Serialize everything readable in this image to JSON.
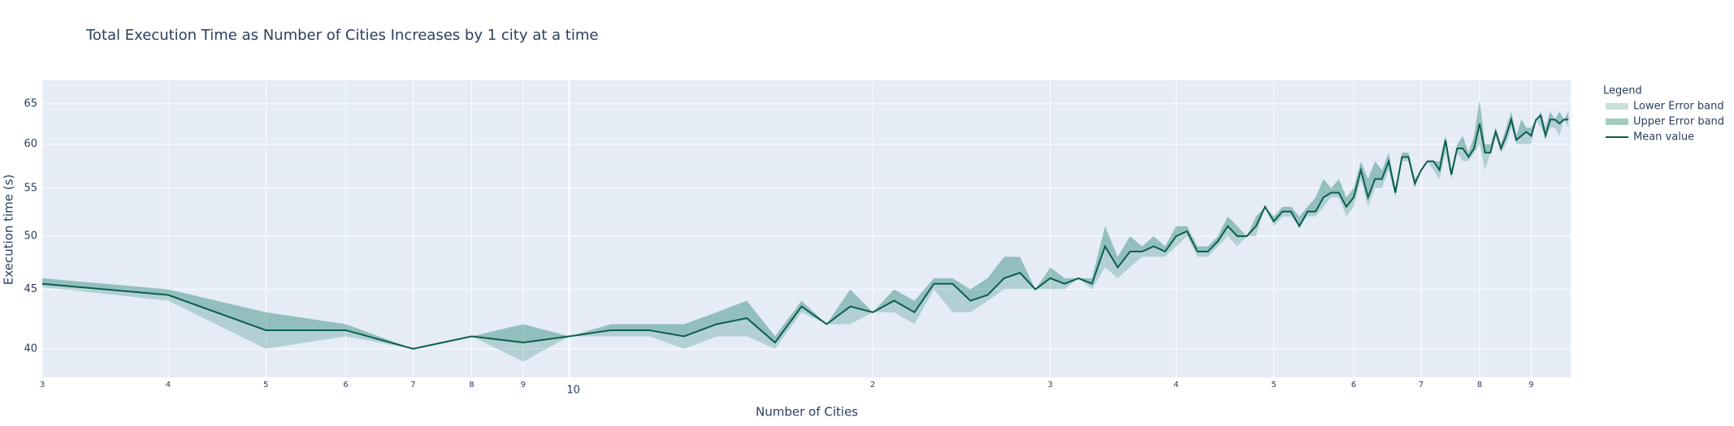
{
  "chart_data": {
    "type": "line",
    "title": "Total Execution Time as Number of Cities Increases by 1 city at a time",
    "x_label": "Number of Cities",
    "y_label": "Execution time (s)",
    "legend_title": "Legend",
    "log_x": true,
    "log_y": true,
    "grid": true,
    "legend": "right",
    "x": [
      3,
      4,
      5,
      6,
      7,
      8,
      9,
      10,
      11,
      12,
      13,
      14,
      15,
      16,
      17,
      18,
      19,
      20,
      21,
      22,
      23,
      24,
      25,
      26,
      27,
      28,
      29,
      30,
      31,
      32,
      33,
      34,
      35,
      36,
      37,
      38,
      39,
      40,
      41,
      42,
      43,
      44,
      45,
      46,
      47,
      48,
      49,
      50,
      51,
      52,
      53,
      54,
      55,
      56,
      57,
      58,
      59,
      60,
      61,
      62,
      63,
      64,
      65,
      66,
      67,
      68,
      69,
      70,
      71,
      72,
      73,
      74,
      75,
      76,
      77,
      78,
      79,
      80,
      81,
      82,
      83,
      84,
      85,
      86,
      87,
      88,
      89,
      90,
      91,
      92,
      93,
      94,
      95,
      96,
      97,
      98
    ],
    "series": [
      {
        "name": "Lower Error band",
        "color": "rgba(0,110,90,0.22)",
        "values": [
          45.2,
          44,
          40,
          41,
          40,
          41,
          39,
          41,
          41,
          41,
          40,
          41,
          41,
          40,
          43,
          42,
          42,
          43,
          43,
          42,
          45,
          43,
          43,
          44,
          45,
          45,
          45,
          45,
          45,
          46,
          45,
          47,
          46,
          47,
          48,
          48,
          48,
          49,
          50,
          48,
          48,
          49,
          50,
          49,
          50,
          50,
          53,
          51,
          52,
          52,
          51,
          52,
          52,
          53,
          54,
          54,
          52,
          53,
          56,
          53,
          55,
          55,
          57,
          54,
          58,
          58,
          55,
          57,
          58,
          57,
          56,
          59,
          56,
          59,
          58,
          58,
          59,
          60,
          57,
          59,
          61,
          59,
          60,
          62,
          60,
          60,
          60,
          60,
          63,
          62,
          61,
          62,
          62,
          61,
          63,
          62
        ]
      },
      {
        "name": "Upper Error band",
        "color": "rgba(0,110,90,0.36)",
        "values": [
          46,
          45,
          43,
          42,
          40,
          41,
          42,
          41,
          42,
          42,
          42,
          43,
          44,
          41,
          44,
          42,
          45,
          43,
          45,
          44,
          46,
          46,
          45,
          46,
          48,
          48,
          45,
          47,
          46,
          46,
          46,
          51,
          48,
          50,
          49,
          50,
          49,
          51,
          51,
          49,
          49,
          50,
          52,
          51,
          50,
          52,
          53,
          52,
          53,
          53,
          52,
          53,
          54,
          56,
          55,
          56,
          54,
          55,
          58,
          56,
          58,
          57,
          59,
          55,
          59,
          59,
          56,
          57,
          58,
          58,
          58,
          61,
          57,
          60,
          61,
          59,
          61,
          65.5,
          60,
          60,
          62,
          60,
          62,
          64,
          61,
          63,
          62,
          62,
          63,
          64,
          62,
          64,
          63,
          64,
          63,
          64
        ]
      },
      {
        "name": "Mean value",
        "color": "#0b5e4c",
        "values": [
          45.5,
          44.5,
          41.5,
          41.5,
          40,
          41,
          40.5,
          41,
          41.5,
          41.5,
          41,
          42,
          42.5,
          40.5,
          43.5,
          42,
          43.5,
          43,
          44,
          43,
          45.5,
          45.5,
          44,
          44.5,
          46,
          46.5,
          45,
          46,
          45.5,
          46,
          45.5,
          49,
          47,
          48.5,
          48.5,
          49,
          48.5,
          50,
          50.5,
          48.5,
          48.5,
          49.5,
          51,
          50,
          50,
          51,
          53,
          51.5,
          52.5,
          52.5,
          51,
          52.5,
          52.5,
          54,
          54.5,
          54.5,
          53,
          54,
          57,
          54,
          56,
          56,
          58,
          54.5,
          58.5,
          58.5,
          55.5,
          57,
          58,
          58,
          57,
          60.5,
          56.5,
          59.5,
          59.5,
          58.5,
          59.5,
          62.5,
          59,
          59,
          61.5,
          59.5,
          61,
          63,
          60.5,
          61,
          61.5,
          61,
          63,
          63.5,
          61,
          63,
          63,
          62.5,
          63,
          63
        ]
      }
    ],
    "xlim": [
      3,
      98.5
    ],
    "ylim": [
      37.8,
      68.1
    ],
    "xticks": [
      3,
      4,
      5,
      6,
      7,
      8,
      9,
      10,
      {
        "value": 20,
        "label": "2"
      },
      {
        "value": 30,
        "label": "3"
      },
      {
        "value": 40,
        "label": "4"
      },
      {
        "value": 50,
        "label": "5"
      },
      {
        "value": 60,
        "label": "6"
      },
      {
        "value": 70,
        "label": "7"
      },
      {
        "value": 80,
        "label": "8"
      },
      {
        "value": 90,
        "label": "9"
      }
    ],
    "yticks": [
      40,
      45,
      50,
      55,
      60,
      65
    ]
  }
}
